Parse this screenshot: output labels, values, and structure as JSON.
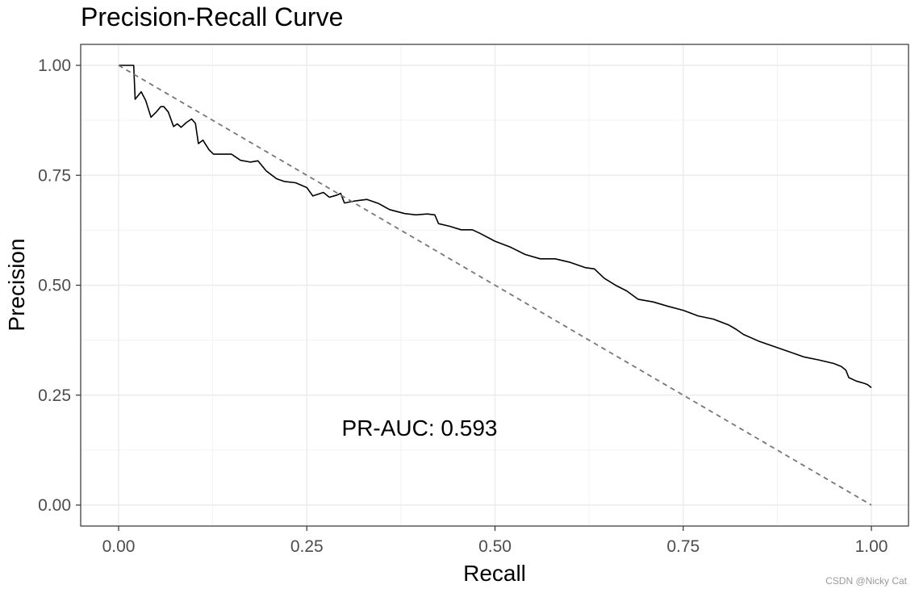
{
  "chart_data": {
    "type": "line",
    "title": "Precision-Recall Curve",
    "xlabel": "Recall",
    "ylabel": "Precision",
    "xlim": [
      0,
      1
    ],
    "ylim": [
      0,
      1
    ],
    "grid": true,
    "x_ticks": [
      "0.00",
      "0.25",
      "0.50",
      "0.75",
      "1.00"
    ],
    "y_ticks": [
      "0.00",
      "0.25",
      "0.50",
      "0.75",
      "1.00"
    ],
    "annotation": "PR-AUC: 0.593",
    "series": [
      {
        "points": [
          [
            0.0,
            1.0
          ],
          [
            0.02,
            1.0
          ],
          [
            0.022,
            0.923
          ],
          [
            0.03,
            0.94
          ],
          [
            0.036,
            0.92
          ],
          [
            0.043,
            0.882
          ],
          [
            0.05,
            0.894
          ],
          [
            0.056,
            0.906
          ],
          [
            0.06,
            0.906
          ],
          [
            0.066,
            0.894
          ],
          [
            0.073,
            0.861
          ],
          [
            0.078,
            0.867
          ],
          [
            0.083,
            0.859
          ],
          [
            0.09,
            0.87
          ],
          [
            0.097,
            0.878
          ],
          [
            0.102,
            0.868
          ],
          [
            0.106,
            0.822
          ],
          [
            0.112,
            0.83
          ],
          [
            0.12,
            0.808
          ],
          [
            0.126,
            0.798
          ],
          [
            0.14,
            0.798
          ],
          [
            0.15,
            0.798
          ],
          [
            0.162,
            0.784
          ],
          [
            0.175,
            0.78
          ],
          [
            0.185,
            0.783
          ],
          [
            0.196,
            0.76
          ],
          [
            0.21,
            0.742
          ],
          [
            0.22,
            0.736
          ],
          [
            0.235,
            0.733
          ],
          [
            0.25,
            0.722
          ],
          [
            0.258,
            0.703
          ],
          [
            0.272,
            0.711
          ],
          [
            0.28,
            0.7
          ],
          [
            0.29,
            0.705
          ],
          [
            0.295,
            0.709
          ],
          [
            0.3,
            0.687
          ],
          [
            0.315,
            0.692
          ],
          [
            0.33,
            0.695
          ],
          [
            0.345,
            0.686
          ],
          [
            0.36,
            0.672
          ],
          [
            0.38,
            0.663
          ],
          [
            0.395,
            0.66
          ],
          [
            0.41,
            0.662
          ],
          [
            0.42,
            0.66
          ],
          [
            0.425,
            0.64
          ],
          [
            0.44,
            0.634
          ],
          [
            0.455,
            0.626
          ],
          [
            0.47,
            0.626
          ],
          [
            0.48,
            0.618
          ],
          [
            0.5,
            0.6
          ],
          [
            0.52,
            0.587
          ],
          [
            0.54,
            0.57
          ],
          [
            0.56,
            0.56
          ],
          [
            0.58,
            0.56
          ],
          [
            0.6,
            0.552
          ],
          [
            0.62,
            0.54
          ],
          [
            0.632,
            0.537
          ],
          [
            0.645,
            0.516
          ],
          [
            0.66,
            0.5
          ],
          [
            0.675,
            0.487
          ],
          [
            0.69,
            0.468
          ],
          [
            0.71,
            0.462
          ],
          [
            0.73,
            0.452
          ],
          [
            0.75,
            0.443
          ],
          [
            0.77,
            0.43
          ],
          [
            0.79,
            0.423
          ],
          [
            0.81,
            0.41
          ],
          [
            0.82,
            0.4
          ],
          [
            0.83,
            0.388
          ],
          [
            0.85,
            0.373
          ],
          [
            0.87,
            0.361
          ],
          [
            0.89,
            0.349
          ],
          [
            0.91,
            0.337
          ],
          [
            0.93,
            0.33
          ],
          [
            0.95,
            0.322
          ],
          [
            0.96,
            0.315
          ],
          [
            0.966,
            0.307
          ],
          [
            0.97,
            0.29
          ],
          [
            0.98,
            0.282
          ],
          [
            0.99,
            0.277
          ],
          [
            0.995,
            0.274
          ],
          [
            1.0,
            0.267
          ]
        ]
      },
      {
        "style": "dashed",
        "points": [
          [
            0,
            1
          ],
          [
            1,
            0
          ]
        ]
      }
    ]
  },
  "watermark": "CSDN @Nicky Cat"
}
